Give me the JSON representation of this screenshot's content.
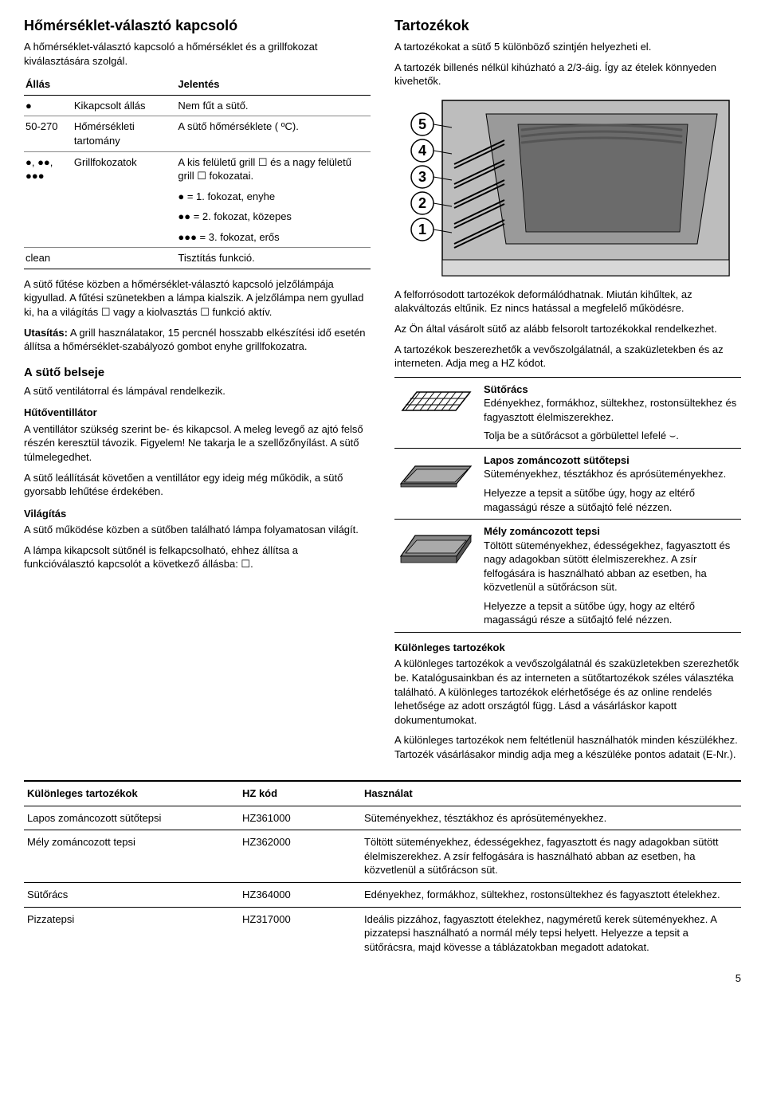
{
  "left": {
    "title": "Hőmérséklet-választó kapcsoló",
    "intro": "A hőmérséklet-választó kapcsoló a hőmérséklet és a grillfokozat kiválasztására szolgál.",
    "table": {
      "headers": [
        "Állás",
        "Jelentés"
      ],
      "rows": [
        {
          "c1": "●",
          "c2": "Kikapcsolt állás",
          "c3": "Nem fűt a sütő."
        },
        {
          "c1": "50-270",
          "c2": "Hőmérsékleti tartomány",
          "c3": "A sütő hőmérséklete ( ºC)."
        },
        {
          "c1": "●, ●●, ●●●",
          "c2": "Grillfokozatok",
          "c3": "A kis felületű grill ☐ és a nagy felületű grill ☐ fokozatai."
        },
        {
          "c1": "",
          "c2": "",
          "c3": "● = 1. fokozat, enyhe"
        },
        {
          "c1": "",
          "c2": "",
          "c3": "●● = 2. fokozat, közepes"
        },
        {
          "c1": "",
          "c2": "",
          "c3": "●●● = 3. fokozat, erős"
        },
        {
          "c1": "clean",
          "c2": "",
          "c3": "Tisztítás funkció."
        }
      ]
    },
    "para1": "A sütő fűtése közben a hőmérséklet-választó kapcsoló jelzőlámpája kigyullad. A fűtési szünetekben a lámpa kialszik. A jelzőlámpa nem gyullad ki, ha a világítás ☐ vagy a kiolvasztás ☐ funkció aktív.",
    "para2_lead": "Utasítás:",
    "para2": " A grill használatakor, 15 percnél hosszabb elkészítési idő esetén állítsa a hőmérséklet-szabályozó gombot enyhe grillfokozatra.",
    "h3_belseje": "A sütő belseje",
    "belseje_p": "A sütő ventilátorral és lámpával rendelkezik.",
    "h4_huto": "Hűtőventillátor",
    "huto_p1": "A ventillátor szükség szerint be- és kikapcsol. A meleg levegő az ajtó felső részén keresztül távozik. Figyelem! Ne takarja le a szellőzőnyílást. A sütő túlmelegedhet.",
    "huto_p2": "A sütő leállítását követően a ventillátor egy ideig még működik, a sütő gyorsabb lehűtése érdekében.",
    "h4_vilag": "Világítás",
    "vilag_p1": "A sütő működése közben a sütőben található lámpa folyamatosan világít.",
    "vilag_p2": "A lámpa kikapcsolt sütőnél is felkapcsolható, ehhez állítsa a funkcióválasztó kapcsolót a következő állásba: ☐."
  },
  "right": {
    "title": "Tartozékok",
    "intro1": "A tartozékokat a sütő 5 különböző szintjén helyezheti el.",
    "intro2": "A tartozék billenés nélkül kihúzható a 2/3-áig. Így az ételek könnyeden kivehetők.",
    "oven": {
      "bg": "#bdbdbd",
      "inner": "#9a9a9a",
      "dark": "#6b6b6b",
      "line": "#000",
      "levels": [
        "5",
        "4",
        "3",
        "2",
        "1"
      ]
    },
    "para1": "A felforrósodott tartozékok deformálódhatnak. Miután kihűltek, az alakváltozás eltűnik. Ez nincs hatással a megfelelő működésre.",
    "para2": "Az Ön által vásárolt sütő az alább felsorolt tartozékokkal rendelkezhet.",
    "para3": "A tartozékok beszerezhetők a vevőszolgálatnál, a szaküzletekben és az interneten. Adja meg a HZ kódot.",
    "acc": [
      {
        "title": "Sütőrács",
        "body": "Edényekhez, formákhoz, sültekhez, rostonsültekhez és fagyasztott élelmiszerekhez.",
        "extra": "Tolja be a sütőrácsot a görbülettel lefelé ⌣.",
        "type": "rack"
      },
      {
        "title": "Lapos zománcozott sütőtepsi",
        "body": "Süteményekhez, tésztákhoz és aprósüteményekhez.",
        "extra": "Helyezze a tepsit a sütőbe úgy, hogy az eltérő magasságú része a sütőajtó felé nézzen.",
        "type": "shallow"
      },
      {
        "title": "Mély zománcozott tepsi",
        "body": "Töltött süteményekhez, édességekhez, fagyasztott és nagy adagokban sütött élelmiszerekhez. A zsír felfogására is használható abban az esetben, ha közvetlenül a sütőrácson süt.",
        "extra": "Helyezze a tepsit a sütőbe úgy, hogy az eltérő magasságú része a sütőajtó felé nézzen.",
        "type": "deep"
      }
    ],
    "h4_kulon": "Különleges tartozékok",
    "kulon_p1": "A különleges tartozékok a vevőszolgálatnál és szaküzletekben szerezhetők be. Katalógusainkban és az interneten a sütőtartozékok széles választéka található. A különleges tartozékok elérhetősége és az online rendelés lehetősége az adott országtól függ. Lásd a vásárláskor kapott dokumentumokat.",
    "kulon_p2": "A különleges tartozékok nem feltétlenül használhatók minden készülékhez. Tartozék vásárlásakor mindig adja meg a készüléke pontos adatait (E-Nr.)."
  },
  "bottom": {
    "headers": [
      "Különleges tartozékok",
      "HZ kód",
      "Használat"
    ],
    "rows": [
      {
        "a": "Lapos zománcozott sütőtepsi",
        "b": "HZ361000",
        "c": "Süteményekhez, tésztákhoz és aprósüteményekhez."
      },
      {
        "a": "Mély zománcozott tepsi",
        "b": "HZ362000",
        "c": "Töltött süteményekhez, édességekhez, fagyasztott és nagy adagokban sütött élelmiszerekhez. A zsír felfogására is használható abban az esetben, ha közvetlenül a sütőrácson süt."
      },
      {
        "a": "Sütőrács",
        "b": "HZ364000",
        "c": "Edényekhez, formákhoz, sültekhez, rostonsültekhez és fagyasztott ételekhez."
      },
      {
        "a": "Pizzatepsi",
        "b": "HZ317000",
        "c": "Ideális pizzához, fagyasztott ételekhez, nagyméretű kerek süteményekhez. A pizzatepsi használható a normál mély tepsi helyett. Helyezze a tepsit a sütőrácsra, majd kövesse a táblázatokban megadott adatokat."
      }
    ]
  },
  "pagenum": "5"
}
